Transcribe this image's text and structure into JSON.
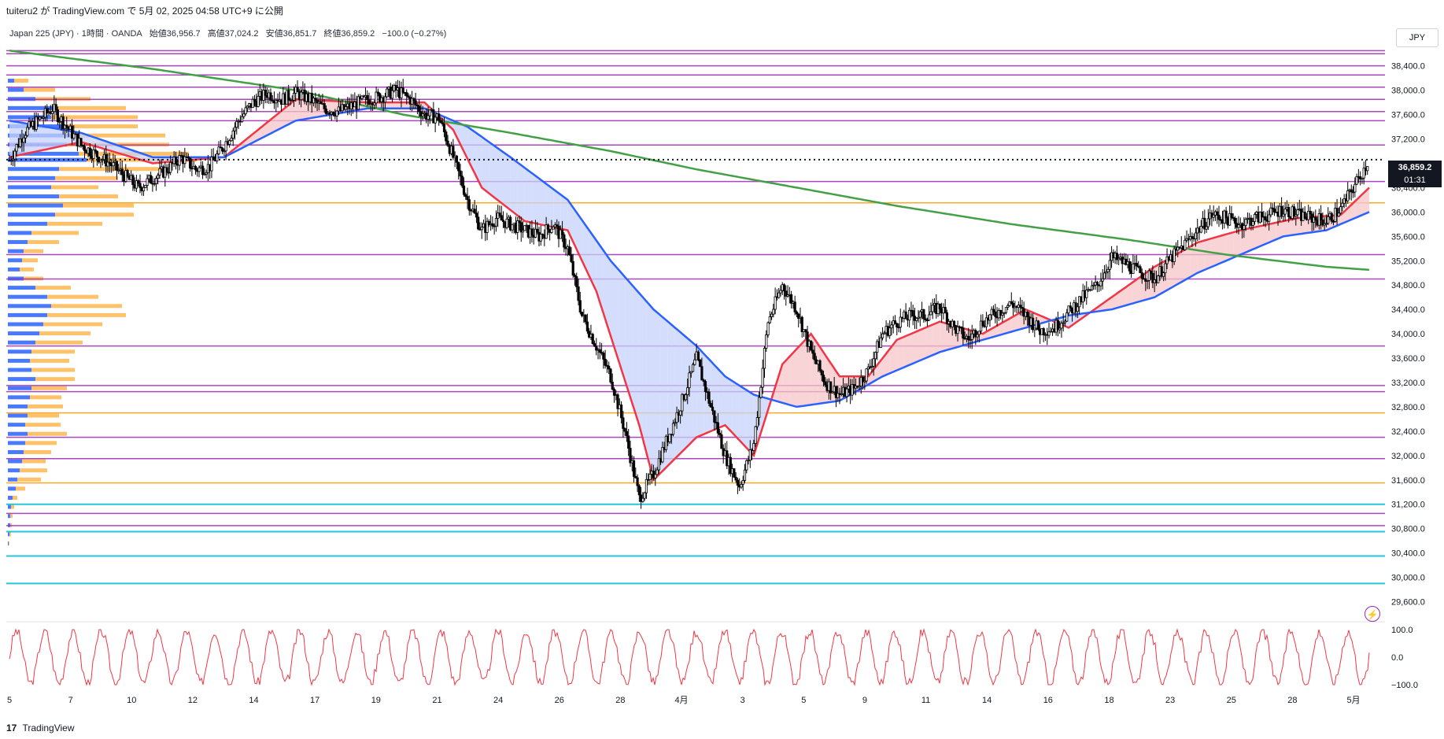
{
  "header": {
    "published": "tuiteru2 が TradingView.com で 5月 02, 2025 04:58 UTC+9 に公開"
  },
  "legend": {
    "symbol": "Japan 225 (JPY) · 1時間 · OANDA",
    "open": "始値36,956.7",
    "high": "高値37,024.2",
    "low": "安値36,851.7",
    "close": "終値36,859.2",
    "change": "−100.0 (−0.27%)"
  },
  "currency": "JPY",
  "price_tag": {
    "price": "36,859.2",
    "countdown": "01:31"
  },
  "footer": {
    "logo": "17",
    "brand": "TradingView"
  },
  "colors": {
    "candle": "#000000",
    "ema_fast": "#f23645",
    "ema_mid": "#2962ff",
    "ema_slow": "#43a047",
    "fill_up": "#f7c5c8",
    "fill_down": "#c5d3fb",
    "level_purple": "#9c27b0",
    "level_orange": "#ff9800",
    "level_cyan": "#00bcd4",
    "vp_blue": "#2962ff",
    "vp_orange": "#ffb74d",
    "oscillator": "#f23645"
  },
  "icons": {
    "alert": "lightning-icon"
  },
  "chart_data": [
    {
      "type": "candlestick",
      "title": "",
      "ylim": [
        29400,
        38900
      ],
      "y_ticks": [
        29600,
        30000,
        30400,
        30800,
        31200,
        31600,
        32000,
        32400,
        32800,
        33200,
        33600,
        34000,
        34400,
        34800,
        35200,
        35600,
        36000,
        36400,
        36800,
        37200,
        37600,
        38000,
        38400
      ],
      "y_tick_labels": [
        "29,600.0",
        "30,000.0",
        "30,400.0",
        "30,800.0",
        "31,200.0",
        "31,600.0",
        "32,000.0",
        "32,400.0",
        "32,800.0",
        "33,200.0",
        "33,600.0",
        "34,000.0",
        "34,400.0",
        "34,800.0",
        "35,200.0",
        "35,600.0",
        "36,000.0",
        "36,400.0",
        "36,800.0",
        "37,200.0",
        "37,600.0",
        "38,000.0",
        "38,400.0"
      ],
      "x_tick_labels": [
        "5",
        "7",
        "10",
        "12",
        "14",
        "17",
        "19",
        "21",
        "24",
        "26",
        "28",
        "4月",
        "3",
        "5",
        "9",
        "11",
        "14",
        "16",
        "18",
        "23",
        "25",
        "28",
        "5月"
      ],
      "close_path": [
        [
          0,
          36850
        ],
        [
          2,
          37300
        ],
        [
          4,
          37500
        ],
        [
          6,
          37700
        ],
        [
          8,
          37400
        ],
        [
          10,
          37100
        ],
        [
          12,
          36950
        ],
        [
          14,
          36800
        ],
        [
          16,
          36600
        ],
        [
          18,
          36400
        ],
        [
          20,
          36550
        ],
        [
          22,
          36700
        ],
        [
          24,
          36900
        ],
        [
          26,
          36700
        ],
        [
          28,
          36750
        ],
        [
          30,
          37100
        ],
        [
          32,
          37500
        ],
        [
          34,
          37800
        ],
        [
          36,
          37950
        ],
        [
          38,
          37850
        ],
        [
          40,
          37950
        ],
        [
          42,
          37850
        ],
        [
          44,
          37700
        ],
        [
          46,
          37650
        ],
        [
          48,
          37750
        ],
        [
          50,
          37850
        ],
        [
          52,
          37900
        ],
        [
          54,
          38000
        ],
        [
          56,
          37850
        ],
        [
          58,
          37600
        ],
        [
          60,
          37550
        ],
        [
          62,
          36900
        ],
        [
          64,
          36200
        ],
        [
          66,
          35700
        ],
        [
          68,
          35900
        ],
        [
          70,
          35800
        ],
        [
          72,
          35700
        ],
        [
          74,
          35600
        ],
        [
          76,
          35800
        ],
        [
          78,
          35400
        ],
        [
          80,
          34300
        ],
        [
          82,
          33800
        ],
        [
          84,
          33300
        ],
        [
          86,
          32400
        ],
        [
          88,
          31300
        ],
        [
          90,
          31700
        ],
        [
          92,
          32300
        ],
        [
          94,
          32900
        ],
        [
          96,
          33600
        ],
        [
          98,
          32800
        ],
        [
          100,
          32000
        ],
        [
          102,
          31500
        ],
        [
          104,
          32200
        ],
        [
          106,
          34200
        ],
        [
          108,
          34800
        ],
        [
          110,
          34400
        ],
        [
          112,
          33700
        ],
        [
          114,
          33200
        ],
        [
          116,
          33000
        ],
        [
          118,
          33100
        ],
        [
          120,
          33400
        ],
        [
          122,
          34000
        ],
        [
          124,
          34200
        ],
        [
          126,
          34300
        ],
        [
          128,
          34300
        ],
        [
          130,
          34450
        ],
        [
          132,
          34100
        ],
        [
          134,
          33900
        ],
        [
          136,
          34200
        ],
        [
          138,
          34350
        ],
        [
          140,
          34500
        ],
        [
          142,
          34300
        ],
        [
          144,
          34050
        ],
        [
          146,
          34100
        ],
        [
          148,
          34350
        ],
        [
          150,
          34600
        ],
        [
          152,
          34800
        ],
        [
          154,
          35250
        ],
        [
          156,
          35150
        ],
        [
          158,
          35000
        ],
        [
          160,
          34900
        ],
        [
          162,
          35200
        ],
        [
          164,
          35450
        ],
        [
          166,
          35700
        ],
        [
          168,
          35950
        ],
        [
          170,
          35900
        ],
        [
          172,
          35800
        ],
        [
          174,
          35900
        ],
        [
          176,
          35950
        ],
        [
          178,
          36050
        ],
        [
          180,
          35950
        ],
        [
          182,
          35900
        ],
        [
          184,
          35850
        ],
        [
          186,
          36050
        ],
        [
          188,
          36450
        ],
        [
          190,
          36859
        ]
      ],
      "series": [
        {
          "name": "",
          "style": "ema-fast",
          "points": [
            [
              0,
              36900
            ],
            [
              10,
              37150
            ],
            [
              20,
              36800
            ],
            [
              30,
              36900
            ],
            [
              40,
              37850
            ],
            [
              50,
              37800
            ],
            [
              58,
              37800
            ],
            [
              62,
              37350
            ],
            [
              66,
              36400
            ],
            [
              72,
              35850
            ],
            [
              78,
              35700
            ],
            [
              82,
              34700
            ],
            [
              88,
              32500
            ],
            [
              90,
              31600
            ],
            [
              96,
              32300
            ],
            [
              100,
              32500
            ],
            [
              104,
              32000
            ],
            [
              108,
              33500
            ],
            [
              112,
              34000
            ],
            [
              116,
              33300
            ],
            [
              120,
              33300
            ],
            [
              124,
              33900
            ],
            [
              130,
              34200
            ],
            [
              136,
              34000
            ],
            [
              142,
              34400
            ],
            [
              148,
              34100
            ],
            [
              154,
              34600
            ],
            [
              160,
              35100
            ],
            [
              166,
              35500
            ],
            [
              172,
              35700
            ],
            [
              180,
              35900
            ],
            [
              186,
              35950
            ],
            [
              190,
              36400
            ]
          ]
        },
        {
          "name": "",
          "style": "ema-mid",
          "points": [
            [
              0,
              37500
            ],
            [
              10,
              37300
            ],
            [
              20,
              36900
            ],
            [
              30,
              36900
            ],
            [
              40,
              37500
            ],
            [
              50,
              37700
            ],
            [
              58,
              37700
            ],
            [
              64,
              37400
            ],
            [
              70,
              36900
            ],
            [
              78,
              36200
            ],
            [
              84,
              35200
            ],
            [
              90,
              34400
            ],
            [
              96,
              33800
            ],
            [
              100,
              33300
            ],
            [
              104,
              33000
            ],
            [
              110,
              32800
            ],
            [
              116,
              32900
            ],
            [
              122,
              33300
            ],
            [
              130,
              33700
            ],
            [
              136,
              33900
            ],
            [
              142,
              34100
            ],
            [
              148,
              34300
            ],
            [
              154,
              34400
            ],
            [
              160,
              34600
            ],
            [
              166,
              35000
            ],
            [
              172,
              35300
            ],
            [
              178,
              35600
            ],
            [
              184,
              35700
            ],
            [
              190,
              36000
            ]
          ]
        },
        {
          "name": "",
          "style": "ema-slow",
          "points": [
            [
              0,
              38650
            ],
            [
              20,
              38350
            ],
            [
              40,
              38000
            ],
            [
              55,
              37600
            ],
            [
              70,
              37300
            ],
            [
              84,
              37000
            ],
            [
              96,
              36700
            ],
            [
              110,
              36400
            ],
            [
              124,
              36100
            ],
            [
              140,
              35800
            ],
            [
              156,
              35550
            ],
            [
              170,
              35300
            ],
            [
              184,
              35100
            ],
            [
              190,
              35050
            ]
          ]
        }
      ],
      "horizontal_levels": [
        {
          "price": 38650,
          "color": "purple"
        },
        {
          "price": 38600,
          "color": "purple"
        },
        {
          "price": 38400,
          "color": "purple"
        },
        {
          "price": 38250,
          "color": "purple"
        },
        {
          "price": 38050,
          "color": "purple"
        },
        {
          "price": 37850,
          "color": "purple"
        },
        {
          "price": 37650,
          "color": "purple"
        },
        {
          "price": 37500,
          "color": "purple"
        },
        {
          "price": 37100,
          "color": "purple"
        },
        {
          "price": 36500,
          "color": "purple"
        },
        {
          "price": 36150,
          "color": "orange"
        },
        {
          "price": 35300,
          "color": "purple"
        },
        {
          "price": 34900,
          "color": "purple"
        },
        {
          "price": 33800,
          "color": "purple"
        },
        {
          "price": 33150,
          "color": "purple"
        },
        {
          "price": 33050,
          "color": "purple"
        },
        {
          "price": 32700,
          "color": "orange"
        },
        {
          "price": 32300,
          "color": "purple"
        },
        {
          "price": 31950,
          "color": "purple"
        },
        {
          "price": 31550,
          "color": "orange"
        },
        {
          "price": 31200,
          "color": "cyan"
        },
        {
          "price": 31050,
          "color": "purple"
        },
        {
          "price": 30850,
          "color": "purple"
        },
        {
          "price": 30750,
          "color": "cyan"
        },
        {
          "price": 30350,
          "color": "cyan"
        },
        {
          "price": 29900,
          "color": "cyan"
        }
      ],
      "last_price_line": 36859.2,
      "volume_profile": [
        {
          "price": 38150,
          "blue": 8,
          "orange": 18
        },
        {
          "price": 38000,
          "blue": 20,
          "orange": 40
        },
        {
          "price": 37850,
          "blue": 35,
          "orange": 70
        },
        {
          "price": 37700,
          "blue": 60,
          "orange": 90
        },
        {
          "price": 37550,
          "blue": 55,
          "orange": 110
        },
        {
          "price": 37400,
          "blue": 70,
          "orange": 95
        },
        {
          "price": 37250,
          "blue": 80,
          "orange": 120
        },
        {
          "price": 37100,
          "blue": 75,
          "orange": 130
        },
        {
          "price": 36950,
          "blue": 90,
          "orange": 140
        },
        {
          "price": 36850,
          "blue": 100,
          "orange": 140
        },
        {
          "price": 36700,
          "blue": 65,
          "orange": 130
        },
        {
          "price": 36550,
          "blue": 60,
          "orange": 80
        },
        {
          "price": 36400,
          "blue": 55,
          "orange": 60
        },
        {
          "price": 36250,
          "blue": 65,
          "orange": 75
        },
        {
          "price": 36100,
          "blue": 70,
          "orange": 90
        },
        {
          "price": 35950,
          "blue": 60,
          "orange": 100
        },
        {
          "price": 35800,
          "blue": 50,
          "orange": 70
        },
        {
          "price": 35650,
          "blue": 30,
          "orange": 60
        },
        {
          "price": 35500,
          "blue": 25,
          "orange": 40
        },
        {
          "price": 35350,
          "blue": 20,
          "orange": 25
        },
        {
          "price": 35200,
          "blue": 18,
          "orange": 20
        },
        {
          "price": 35050,
          "blue": 15,
          "orange": 18
        },
        {
          "price": 34900,
          "blue": 20,
          "orange": 25
        },
        {
          "price": 34750,
          "blue": 35,
          "orange": 45
        },
        {
          "price": 34600,
          "blue": 50,
          "orange": 65
        },
        {
          "price": 34450,
          "blue": 55,
          "orange": 90
        },
        {
          "price": 34300,
          "blue": 50,
          "orange": 100
        },
        {
          "price": 34150,
          "blue": 45,
          "orange": 75
        },
        {
          "price": 34000,
          "blue": 40,
          "orange": 65
        },
        {
          "price": 33850,
          "blue": 35,
          "orange": 60
        },
        {
          "price": 33700,
          "blue": 30,
          "orange": 55
        },
        {
          "price": 33550,
          "blue": 28,
          "orange": 50
        },
        {
          "price": 33400,
          "blue": 30,
          "orange": 55
        },
        {
          "price": 33250,
          "blue": 35,
          "orange": 50
        },
        {
          "price": 33100,
          "blue": 30,
          "orange": 45
        },
        {
          "price": 32950,
          "blue": 28,
          "orange": 40
        },
        {
          "price": 32800,
          "blue": 25,
          "orange": 45
        },
        {
          "price": 32650,
          "blue": 25,
          "orange": 40
        },
        {
          "price": 32500,
          "blue": 22,
          "orange": 45
        },
        {
          "price": 32350,
          "blue": 25,
          "orange": 50
        },
        {
          "price": 32200,
          "blue": 22,
          "orange": 40
        },
        {
          "price": 32050,
          "blue": 20,
          "orange": 35
        },
        {
          "price": 31900,
          "blue": 18,
          "orange": 30
        },
        {
          "price": 31750,
          "blue": 15,
          "orange": 35
        },
        {
          "price": 31600,
          "blue": 12,
          "orange": 30
        },
        {
          "price": 31450,
          "blue": 10,
          "orange": 12
        },
        {
          "price": 31300,
          "blue": 6,
          "orange": 6
        },
        {
          "price": 31150,
          "blue": 4,
          "orange": 4
        },
        {
          "price": 31000,
          "blue": 3,
          "orange": 3
        },
        {
          "price": 30850,
          "blue": 3,
          "orange": 2
        },
        {
          "price": 30700,
          "blue": 2,
          "orange": 2
        },
        {
          "price": 30550,
          "blue": 1,
          "orange": 1
        }
      ]
    },
    {
      "type": "line",
      "title": "",
      "ylim": [
        -100,
        100
      ],
      "y_ticks": [
        100,
        0,
        -100
      ],
      "y_tick_labels": [
        "100.0",
        "0.0",
        "−100.0"
      ],
      "series": [
        {
          "name": "",
          "style": "oscillator",
          "cycles": 48
        }
      ]
    }
  ]
}
